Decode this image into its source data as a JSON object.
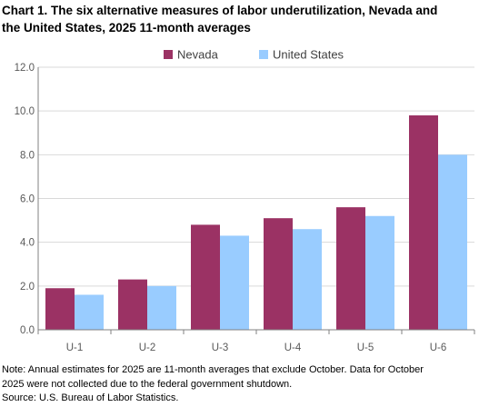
{
  "title_lines": [
    "Chart 1. The six alternative measures of labor underutilization, Nevada and",
    "the United States, 2025 11-month averages"
  ],
  "notes": {
    "line1": "Note: Annual estimates for 2025 are 11-month averages that exclude October. Data for October",
    "line2": "2025 were not collected due to the federal government shutdown.",
    "source": "Source: U.S. Bureau of Labor Statistics."
  },
  "colors": {
    "nevada": "#9b3264",
    "united_states": "#99ccff",
    "grid": "#d9d9d9",
    "axis": "#808080",
    "tick_text": "#595959"
  },
  "chart_data": {
    "type": "bar",
    "title": "Chart 1. The six alternative measures of labor underutilization, Nevada and the United States, 2025 11-month averages",
    "categories": [
      "U-1",
      "U-2",
      "U-3",
      "U-4",
      "U-5",
      "U-6"
    ],
    "series": [
      {
        "name": "Nevada",
        "values": [
          1.9,
          2.3,
          4.8,
          5.1,
          5.6,
          9.8
        ]
      },
      {
        "name": "United States",
        "values": [
          1.6,
          2.0,
          4.3,
          4.6,
          5.2,
          8.0
        ]
      }
    ],
    "xlabel": "",
    "ylabel": "",
    "ylim": [
      0,
      12
    ],
    "yticks": [
      "0.0",
      "2.0",
      "4.0",
      "6.0",
      "8.0",
      "10.0",
      "12.0"
    ],
    "grid": true,
    "legend": "top-center"
  }
}
